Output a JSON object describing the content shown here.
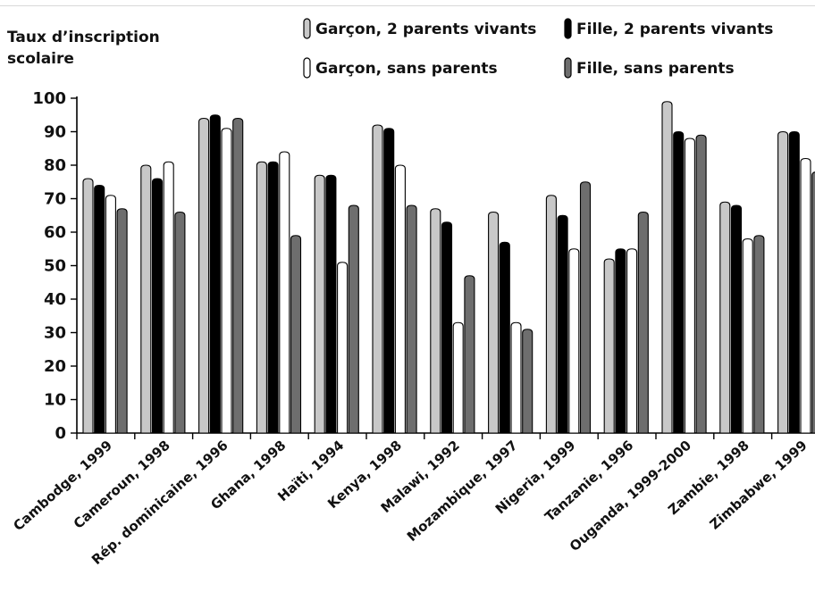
{
  "chart_data": {
    "type": "bar",
    "ylabel_lines": [
      "Taux d’inscription",
      "scolaire"
    ],
    "xlabel": "",
    "ylim": [
      0,
      100
    ],
    "yticks": [
      0,
      10,
      20,
      30,
      40,
      50,
      60,
      70,
      80,
      90,
      100
    ],
    "grid": false,
    "legend_position": "top",
    "categories": [
      "Cambodge, 1999",
      "Cameroun, 1998",
      "Rép. dominicaine, 1996",
      "Ghana, 1998",
      "Haïti, 1994",
      "Kenya, 1998",
      "Malawi, 1992",
      "Mozambique, 1997",
      "Nigeria, 1999",
      "Tanzanie, 1996",
      "Ouganda, 1999-2000",
      "Zambie, 1998",
      "Zimbabwe, 1999"
    ],
    "series": [
      {
        "name": "Garçon, 2 parents vivants",
        "color": "#c8c8c8",
        "values": [
          76,
          80,
          94,
          81,
          77,
          92,
          67,
          66,
          71,
          52,
          99,
          69,
          90
        ]
      },
      {
        "name": "Fille, 2 parents vivants",
        "color": "#000000",
        "values": [
          74,
          76,
          95,
          81,
          77,
          91,
          63,
          57,
          65,
          55,
          90,
          68,
          90
        ]
      },
      {
        "name": "Garçon, sans parents",
        "color": "#ffffff",
        "values": [
          71,
          81,
          91,
          84,
          51,
          80,
          33,
          33,
          55,
          55,
          88,
          58,
          82
        ]
      },
      {
        "name": "Fille, sans parents",
        "color": "#6e6e6e",
        "values": [
          67,
          66,
          94,
          59,
          68,
          68,
          47,
          31,
          75,
          66,
          89,
          59,
          78
        ]
      }
    ]
  }
}
